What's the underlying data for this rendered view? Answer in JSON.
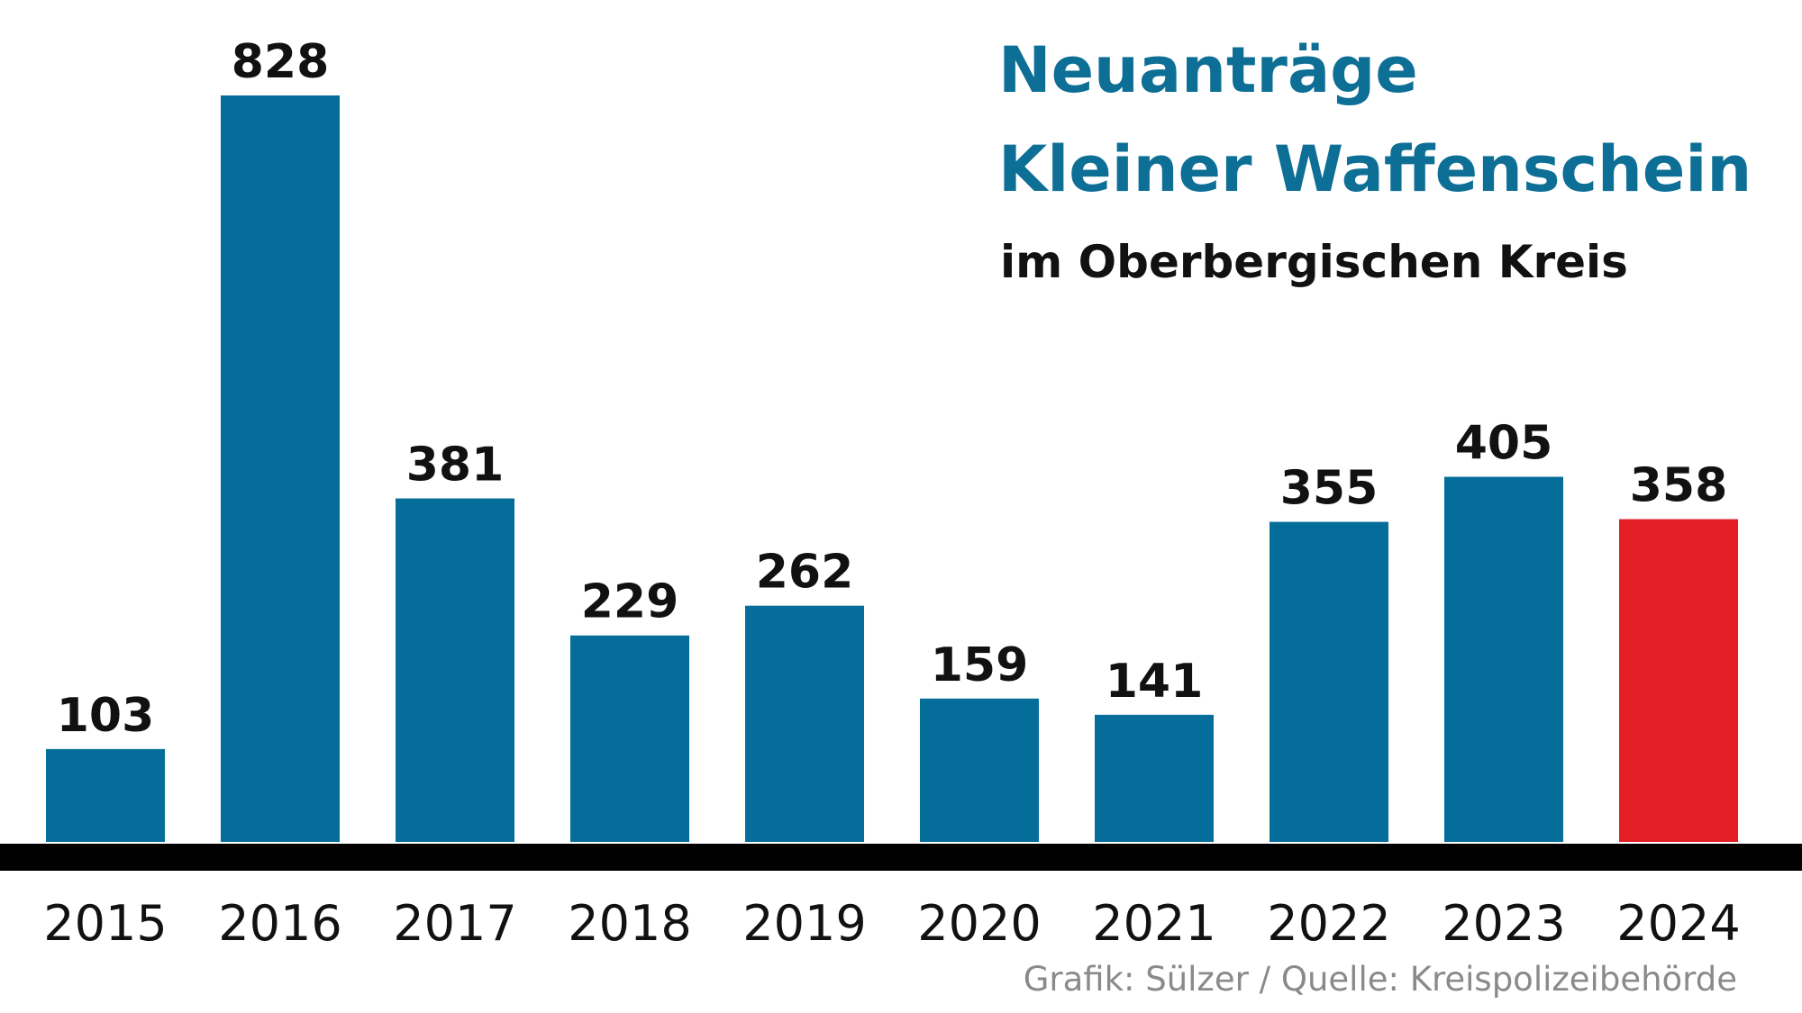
{
  "chart_data": {
    "type": "bar",
    "title": [
      "Neuanträge",
      "Kleiner Waffenschein"
    ],
    "subtitle": "im Oberbergischen Kreis",
    "source": "Grafik: Sülzer / Quelle: Kreispolizeibehörde",
    "categories": [
      "2015",
      "2016",
      "2017",
      "2018",
      "2019",
      "2020",
      "2021",
      "2022",
      "2023",
      "2024"
    ],
    "values": [
      103,
      828,
      381,
      229,
      262,
      159,
      141,
      355,
      405,
      358
    ],
    "colors": [
      "#046d9a",
      "#046d9a",
      "#046d9a",
      "#046d9a",
      "#046d9a",
      "#046d9a",
      "#046d9a",
      "#046d9a",
      "#046d9a",
      "#e31e24"
    ]
  }
}
